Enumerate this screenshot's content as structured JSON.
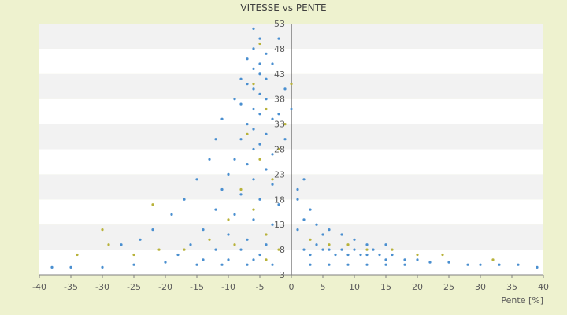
{
  "chart_data": {
    "type": "scatter",
    "title": "VITESSE vs PENTE",
    "xlabel": "Pente [%]",
    "ylabel": "",
    "xlim": [
      -40,
      40
    ],
    "ylim": [
      3,
      53
    ],
    "x_ticks": [
      -40,
      -35,
      -30,
      -25,
      -20,
      -15,
      -10,
      -5,
      0,
      5,
      10,
      15,
      20,
      25,
      30,
      35,
      40
    ],
    "y_ticks": [
      3,
      8,
      13,
      18,
      23,
      28,
      33,
      38,
      43,
      48,
      53
    ],
    "grid": "horizontal bands",
    "legend": "none",
    "colors": {
      "background": "#eef2cf",
      "band": "#f2f2f2",
      "series_main": "#4a8fd0",
      "series_secondary": "#b8b23a"
    },
    "series": [
      {
        "points": [
          [
            -6,
            52
          ],
          [
            -5,
            50
          ],
          [
            -6,
            48
          ],
          [
            -4,
            47
          ],
          [
            -7,
            46
          ],
          [
            -5,
            45
          ],
          [
            -6,
            44
          ],
          [
            -5,
            43
          ],
          [
            -4,
            42
          ],
          [
            -7,
            41
          ],
          [
            -6,
            40
          ],
          [
            -5,
            39
          ],
          [
            -4,
            38
          ],
          [
            -8,
            37
          ],
          [
            -6,
            36
          ],
          [
            -5,
            35
          ],
          [
            -3,
            34
          ],
          [
            -7,
            33
          ],
          [
            -6,
            32
          ],
          [
            -4,
            31
          ],
          [
            -8,
            30
          ],
          [
            -5,
            29
          ],
          [
            -6,
            28
          ],
          [
            -3,
            27
          ],
          [
            -9,
            26
          ],
          [
            -7,
            25
          ],
          [
            -4,
            24
          ],
          [
            -10,
            23
          ],
          [
            -6,
            22
          ],
          [
            -3,
            21
          ],
          [
            -11,
            20
          ],
          [
            -8,
            19
          ],
          [
            -5,
            18
          ],
          [
            -2,
            17
          ],
          [
            -12,
            16
          ],
          [
            -9,
            15
          ],
          [
            -6,
            14
          ],
          [
            -3,
            13
          ],
          [
            -14,
            12
          ],
          [
            -10,
            11
          ],
          [
            -7,
            10
          ],
          [
            -4,
            9
          ],
          [
            -16,
            9
          ],
          [
            -12,
            8
          ],
          [
            -8,
            8
          ],
          [
            -5,
            7
          ],
          [
            -18,
            7
          ],
          [
            -14,
            6
          ],
          [
            -10,
            6
          ],
          [
            -6,
            6
          ],
          [
            -20,
            5.5
          ],
          [
            -25,
            5
          ],
          [
            -30,
            4.5
          ],
          [
            -35,
            4.5
          ],
          [
            -38,
            4.5
          ],
          [
            2,
            8
          ],
          [
            3,
            7
          ],
          [
            4,
            9
          ],
          [
            5,
            8
          ],
          [
            6,
            8
          ],
          [
            7,
            7
          ],
          [
            8,
            8
          ],
          [
            9,
            7
          ],
          [
            10,
            8
          ],
          [
            11,
            7
          ],
          [
            12,
            7
          ],
          [
            13,
            8
          ],
          [
            14,
            7
          ],
          [
            15,
            6
          ],
          [
            16,
            7
          ],
          [
            18,
            6
          ],
          [
            20,
            6
          ],
          [
            22,
            5.5
          ],
          [
            25,
            5.5
          ],
          [
            28,
            5
          ],
          [
            30,
            5
          ],
          [
            33,
            5
          ],
          [
            36,
            5
          ],
          [
            39,
            4.5
          ],
          [
            1,
            12
          ],
          [
            2,
            14
          ],
          [
            3,
            16
          ],
          [
            4,
            13
          ],
          [
            5,
            11
          ],
          [
            6,
            12
          ],
          [
            8,
            11
          ],
          [
            10,
            10
          ],
          [
            12,
            9
          ],
          [
            15,
            9
          ],
          [
            1,
            20
          ],
          [
            2,
            22
          ],
          [
            1,
            18
          ],
          [
            -1,
            30
          ],
          [
            -2,
            35
          ],
          [
            -1,
            40
          ],
          [
            0,
            36
          ],
          [
            -3,
            45
          ],
          [
            -2,
            50
          ],
          [
            -8,
            42
          ],
          [
            -9,
            38
          ],
          [
            -11,
            34
          ],
          [
            -12,
            30
          ],
          [
            -13,
            26
          ],
          [
            -15,
            22
          ],
          [
            -17,
            18
          ],
          [
            -19,
            15
          ],
          [
            -22,
            12
          ],
          [
            -24,
            10
          ],
          [
            -27,
            9
          ],
          [
            3,
            5
          ],
          [
            6,
            5
          ],
          [
            9,
            5
          ],
          [
            12,
            5
          ],
          [
            15,
            5
          ],
          [
            18,
            5
          ],
          [
            -3,
            5
          ],
          [
            -7,
            5
          ],
          [
            -11,
            5
          ],
          [
            -15,
            5
          ]
        ]
      },
      {
        "points": [
          [
            -5,
            49
          ],
          [
            -6,
            41
          ],
          [
            -4,
            36
          ],
          [
            -7,
            31
          ],
          [
            -5,
            26
          ],
          [
            -3,
            22
          ],
          [
            -8,
            20
          ],
          [
            -6,
            16
          ],
          [
            -10,
            14
          ],
          [
            -4,
            11
          ],
          [
            -13,
            10
          ],
          [
            -9,
            9
          ],
          [
            -17,
            8
          ],
          [
            -21,
            8
          ],
          [
            -25,
            7
          ],
          [
            -29,
            9
          ],
          [
            -34,
            7
          ],
          [
            -30,
            12
          ],
          [
            -22,
            17
          ],
          [
            -2,
            28
          ],
          [
            -1,
            33
          ],
          [
            0,
            41
          ],
          [
            3,
            10
          ],
          [
            6,
            9
          ],
          [
            9,
            9
          ],
          [
            12,
            8
          ],
          [
            16,
            8
          ],
          [
            20,
            7
          ],
          [
            24,
            7
          ],
          [
            32,
            6
          ],
          [
            -2,
            8
          ],
          [
            -4,
            6
          ]
        ]
      }
    ]
  }
}
